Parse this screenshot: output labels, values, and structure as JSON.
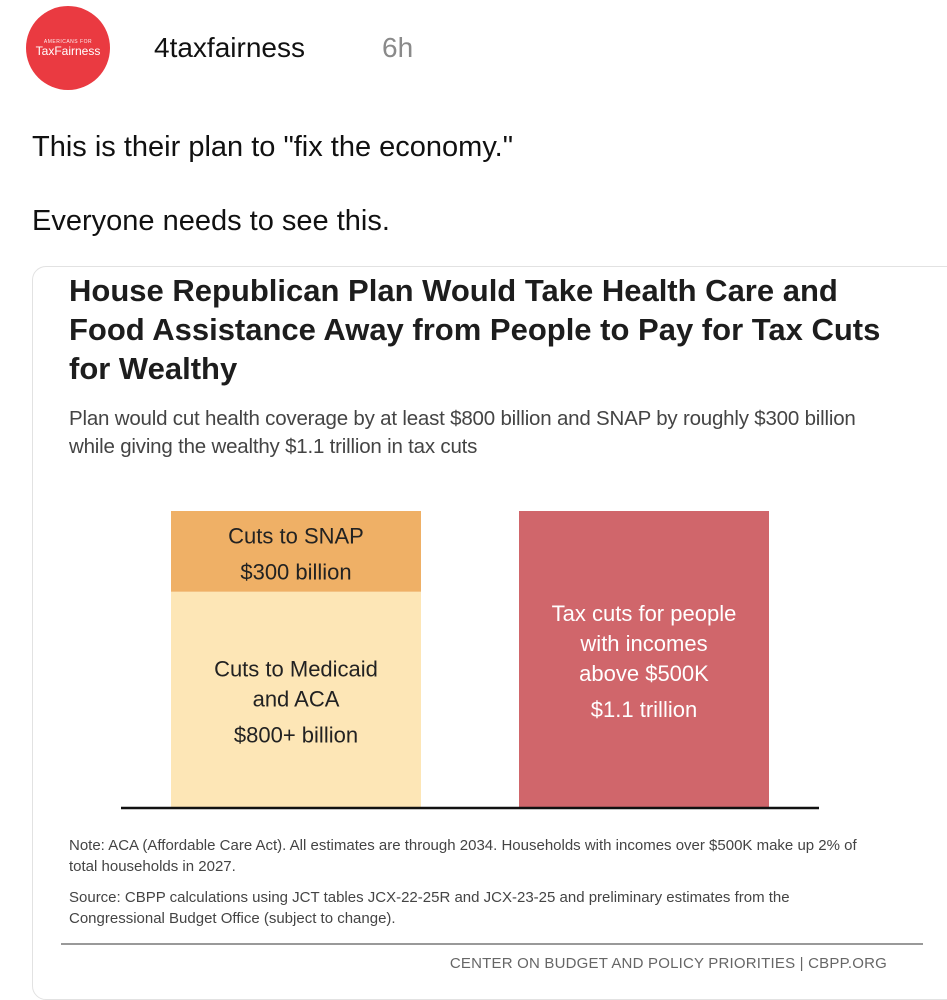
{
  "post": {
    "avatar_small_text": "AMERICANS FOR",
    "avatar_brand_text": "TaxFairness",
    "username": "4taxfairness",
    "timestamp": "6h",
    "lines": [
      "This is their plan to \"fix the economy.\"",
      "Everyone needs to see this."
    ]
  },
  "card": {
    "title": "House Republican Plan Would Take Health Care and Food Assistance Away from People to Pay for Tax Cuts for Wealthy",
    "subtitle": "Plan would cut health coverage by at least $800 billion and SNAP by roughly $300 billion while giving the wealthy $1.1 trillion in tax cuts",
    "note": "Note: ACA (Affordable Care Act). All estimates are through 2034. Households with incomes over $500K make up 2% of total households in 2027.",
    "source": "Source: CBPP calculations using JCT tables JCX-22-25R and JCX-23-25 and preliminary estimates from the Congressional Budget Office (subject to change).",
    "credit": "CENTER ON BUDGET AND POLICY PRIORITIES | CBPP.ORG"
  },
  "chart_data": {
    "type": "bar",
    "units": "billion dollars",
    "bars": [
      {
        "stack": [
          {
            "label_lines": [
              "Cuts to Medicaid",
              "and ACA"
            ],
            "value_label": "$800+ billion",
            "value": 800,
            "color": "#fde6b6"
          },
          {
            "label_lines": [
              "Cuts to SNAP"
            ],
            "value_label": "$300 billion",
            "value": 300,
            "color": "#efb066"
          }
        ]
      },
      {
        "stack": [
          {
            "label_lines": [
              "Tax cuts for people",
              "with incomes",
              "above $500K"
            ],
            "value_label": "$1.1 trillion",
            "value": 1100,
            "color": "#d0666b"
          }
        ]
      }
    ]
  }
}
